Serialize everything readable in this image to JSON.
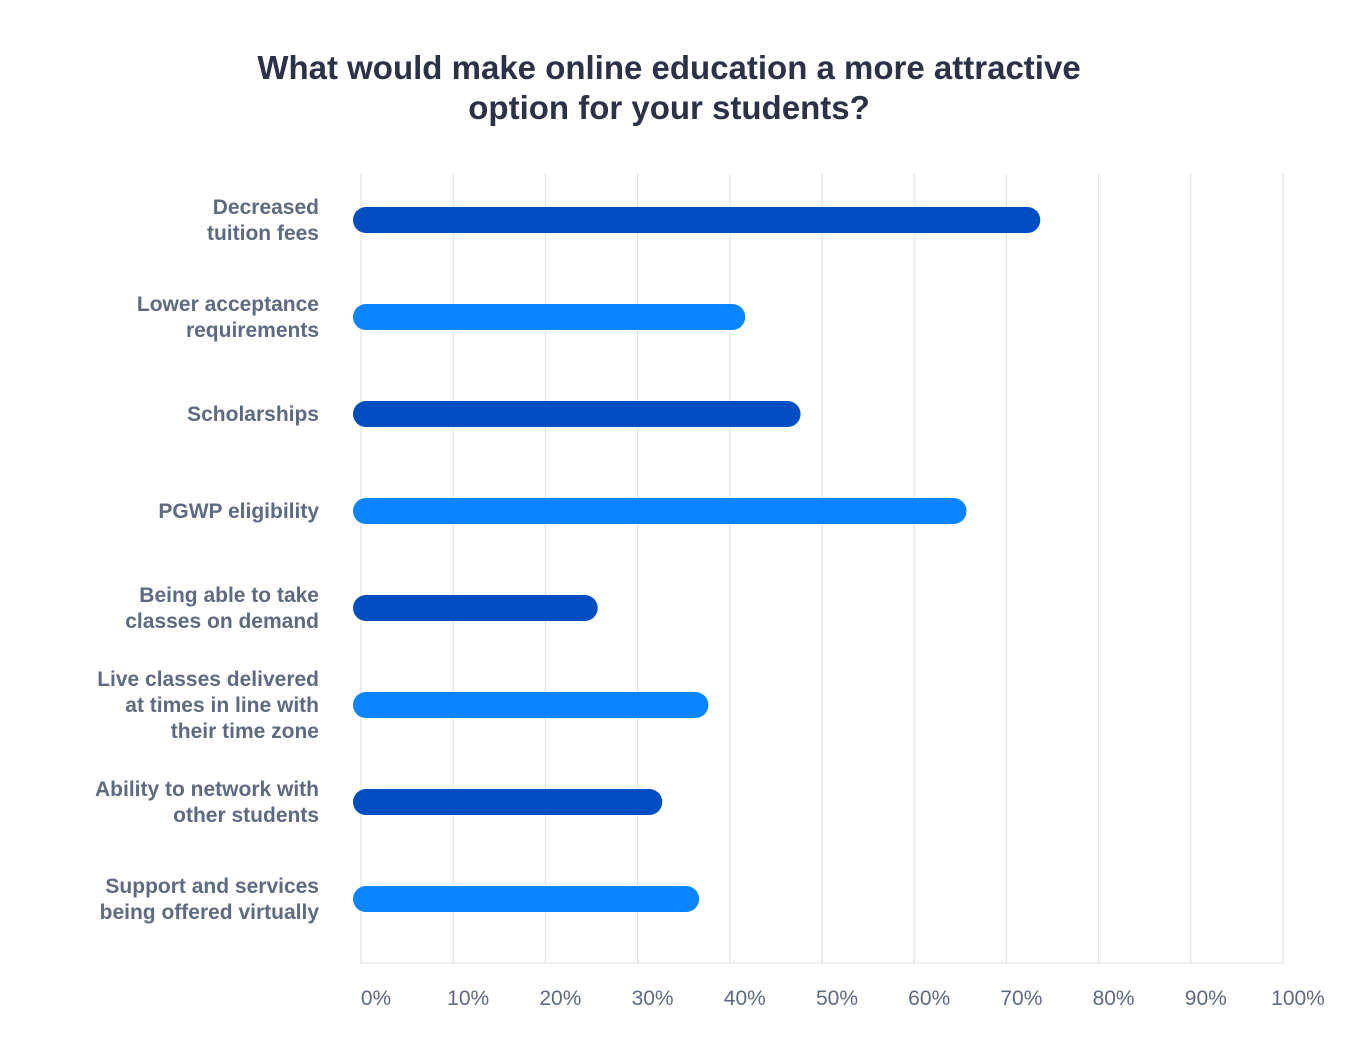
{
  "chart_data": {
    "type": "bar",
    "orientation": "horizontal",
    "title": "What would make online education a more attractive\noption for your students?",
    "xlabel": "",
    "ylabel": "",
    "xlim": [
      0,
      100
    ],
    "x_ticks": [
      "0%",
      "10%",
      "20%",
      "30%",
      "40%",
      "50%",
      "60%",
      "70%",
      "80%",
      "90%",
      "100%"
    ],
    "grid": true,
    "categories": [
      [
        "Decreased",
        "tuition fees"
      ],
      [
        "Lower acceptance",
        "requirements"
      ],
      [
        "Scholarships"
      ],
      [
        "PGWP eligibility"
      ],
      [
        "Being able to take",
        "classes on demand"
      ],
      [
        "Live classes delivered",
        "at times in line with",
        "their time zone"
      ],
      [
        "Ability to network with",
        "other students"
      ],
      [
        "Support and services",
        "being offered virtually"
      ]
    ],
    "values": [
      74,
      42,
      48,
      66,
      26,
      38,
      33,
      37
    ],
    "colors": [
      "#004ec2",
      "#0a84ff",
      "#004ec2",
      "#0a84ff",
      "#004ec2",
      "#0a84ff",
      "#004ec2",
      "#0a84ff"
    ]
  }
}
